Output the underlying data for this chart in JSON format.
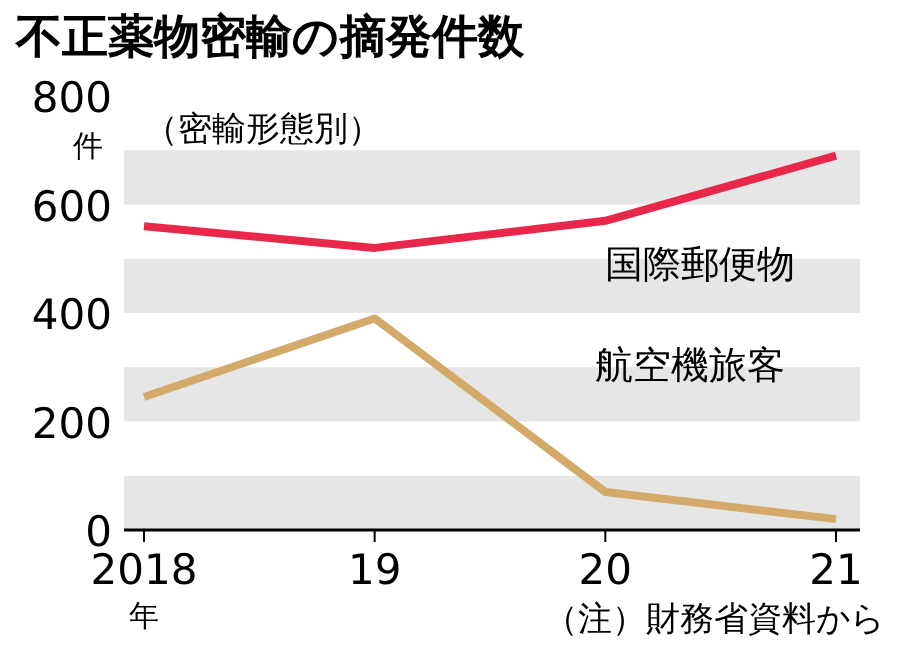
{
  "chart_data": {
    "type": "line",
    "title": "不正薬物密輸の摘発件数",
    "subtitle": "（密輸形態別）",
    "ylabel": "件",
    "xlabel": "年",
    "categories": [
      "2018",
      "19",
      "20",
      "21"
    ],
    "series": [
      {
        "name": "国際郵便物",
        "color": "#e8274b",
        "values": [
          560,
          520,
          570,
          690
        ]
      },
      {
        "name": "航空機旅客",
        "color": "#d4aa6a",
        "values": [
          245,
          390,
          70,
          20
        ]
      }
    ],
    "ylim": [
      0,
      800
    ],
    "yticks": [
      0,
      200,
      400,
      600,
      800
    ],
    "bands": [
      {
        "axis": "y",
        "from": 0,
        "to": 100,
        "color": "#e6e6e6"
      },
      {
        "axis": "y",
        "from": 200,
        "to": 300,
        "color": "#e6e6e6"
      },
      {
        "axis": "y",
        "from": 400,
        "to": 500,
        "color": "#e6e6e6"
      },
      {
        "axis": "y",
        "from": 600,
        "to": 700,
        "color": "#e6e6e6"
      }
    ],
    "annotations": [
      "（注）財務省資料から"
    ],
    "marker": "none",
    "line_style": "solid"
  }
}
